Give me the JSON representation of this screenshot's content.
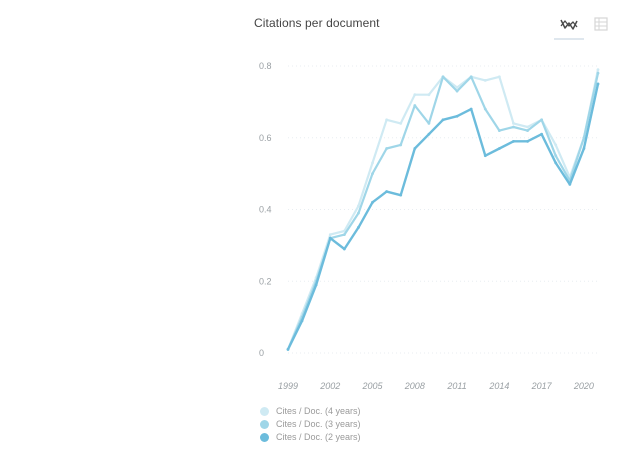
{
  "card": {
    "title": "Citations per document"
  },
  "toolbar": {
    "chart_icon": "line-chart-icon",
    "table_icon": "table-grid-icon"
  },
  "colors": {
    "grid": "#e8edf1",
    "tick": "#9aa0a4",
    "c4": "#cfeaf3",
    "c3": "#9fd6e8",
    "c2": "#6cbcdc"
  },
  "chart_data": {
    "type": "line",
    "title": "Citations per document",
    "xlabel": "",
    "ylabel": "",
    "x": [
      1999,
      2000,
      2001,
      2002,
      2003,
      2004,
      2005,
      2006,
      2007,
      2008,
      2009,
      2010,
      2011,
      2012,
      2013,
      2014,
      2015,
      2016,
      2017,
      2018,
      2019,
      2020,
      2021
    ],
    "xticks": [
      "1999",
      "2002",
      "2005",
      "2008",
      "2011",
      "2014",
      "2017",
      "2020"
    ],
    "yticks": [
      "0",
      "0.2",
      "0.4",
      "0.6",
      "0.8"
    ],
    "ylim": [
      0,
      0.8
    ],
    "xlim": [
      1999,
      2021
    ],
    "grid": true,
    "legend_position": "bottom-left",
    "series": [
      {
        "name": "Cites / Doc. (4 years)",
        "color": "#cfeaf3",
        "values": [
          0.01,
          0.11,
          0.21,
          0.33,
          0.34,
          0.41,
          0.53,
          0.65,
          0.64,
          0.72,
          0.72,
          0.77,
          0.74,
          0.77,
          0.76,
          0.77,
          0.64,
          0.63,
          0.65,
          0.58,
          0.49,
          0.6,
          0.79
        ]
      },
      {
        "name": "Cites / Doc. (3 years)",
        "color": "#9fd6e8",
        "values": [
          0.01,
          0.1,
          0.2,
          0.32,
          0.33,
          0.39,
          0.5,
          0.57,
          0.58,
          0.69,
          0.64,
          0.77,
          0.73,
          0.77,
          0.68,
          0.62,
          0.63,
          0.62,
          0.65,
          0.55,
          0.48,
          0.6,
          0.78
        ]
      },
      {
        "name": "Cites / Doc. (2 years)",
        "color": "#6cbcdc",
        "values": [
          0.01,
          0.09,
          0.19,
          0.32,
          0.29,
          0.35,
          0.42,
          0.45,
          0.44,
          0.57,
          0.61,
          0.65,
          0.66,
          0.68,
          0.55,
          0.57,
          0.59,
          0.59,
          0.61,
          0.53,
          0.47,
          0.57,
          0.75
        ]
      }
    ]
  }
}
